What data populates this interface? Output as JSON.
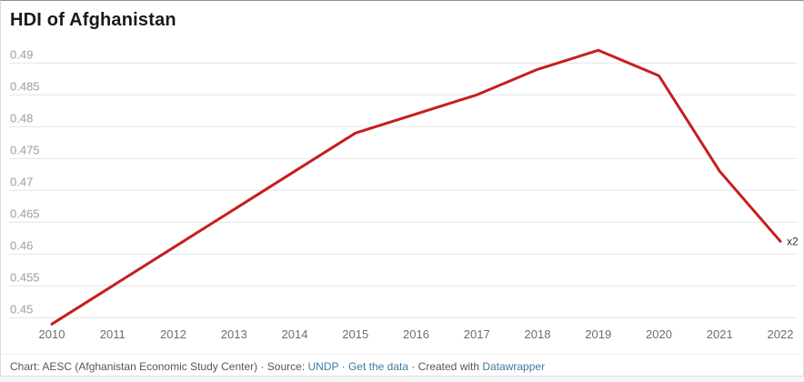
{
  "title": "HDI of Afghanistan",
  "chart_data": {
    "type": "line",
    "title": "HDI of Afghanistan",
    "x": [
      2010,
      2011,
      2012,
      2013,
      2014,
      2015,
      2016,
      2017,
      2018,
      2019,
      2020,
      2021,
      2022
    ],
    "x_tick_labels": [
      "2010",
      "2011",
      "2012",
      "2013",
      "2014",
      "2015",
      "2016",
      "2017",
      "2018",
      "2019",
      "2020",
      "2021",
      "2022"
    ],
    "series": [
      {
        "name": "x2",
        "values": [
          0.449,
          0.455,
          0.461,
          0.467,
          0.473,
          0.479,
          0.482,
          0.485,
          0.489,
          0.492,
          0.488,
          0.473,
          0.462
        ]
      }
    ],
    "y_tick_labels": [
      "0.45",
      "0.455",
      "0.46",
      "0.465",
      "0.47",
      "0.475",
      "0.48",
      "0.485",
      "0.49"
    ],
    "ylim": [
      0.4475,
      0.4935
    ],
    "grid": "horizontal",
    "legend": "label-at-line-end"
  },
  "colors": {
    "line": "#c71e1d",
    "grid": "#e4e4e4",
    "y_tick": "#9d9d9d",
    "x_tick": "#6d6d6d",
    "series_label": "#333333",
    "title": "#1a1a1a",
    "footer_text": "#575757",
    "footer_link": "#3e7ba6"
  },
  "footer": {
    "parts": [
      {
        "text": "Chart: AESC (Afghanistan Economic Study Center) · Source: ",
        "link": false,
        "name": "footer-credit-text"
      },
      {
        "text": "UNDP",
        "link": true,
        "name": "footer-link-undp"
      },
      {
        "text": " · ",
        "link": false,
        "name": "footer-separator-1"
      },
      {
        "text": "Get the data",
        "link": true,
        "name": "footer-link-get-the-data"
      },
      {
        "text": " · Created with ",
        "link": false,
        "name": "footer-created-with-text"
      },
      {
        "text": "Datawrapper",
        "link": true,
        "name": "footer-link-datawrapper"
      }
    ]
  }
}
